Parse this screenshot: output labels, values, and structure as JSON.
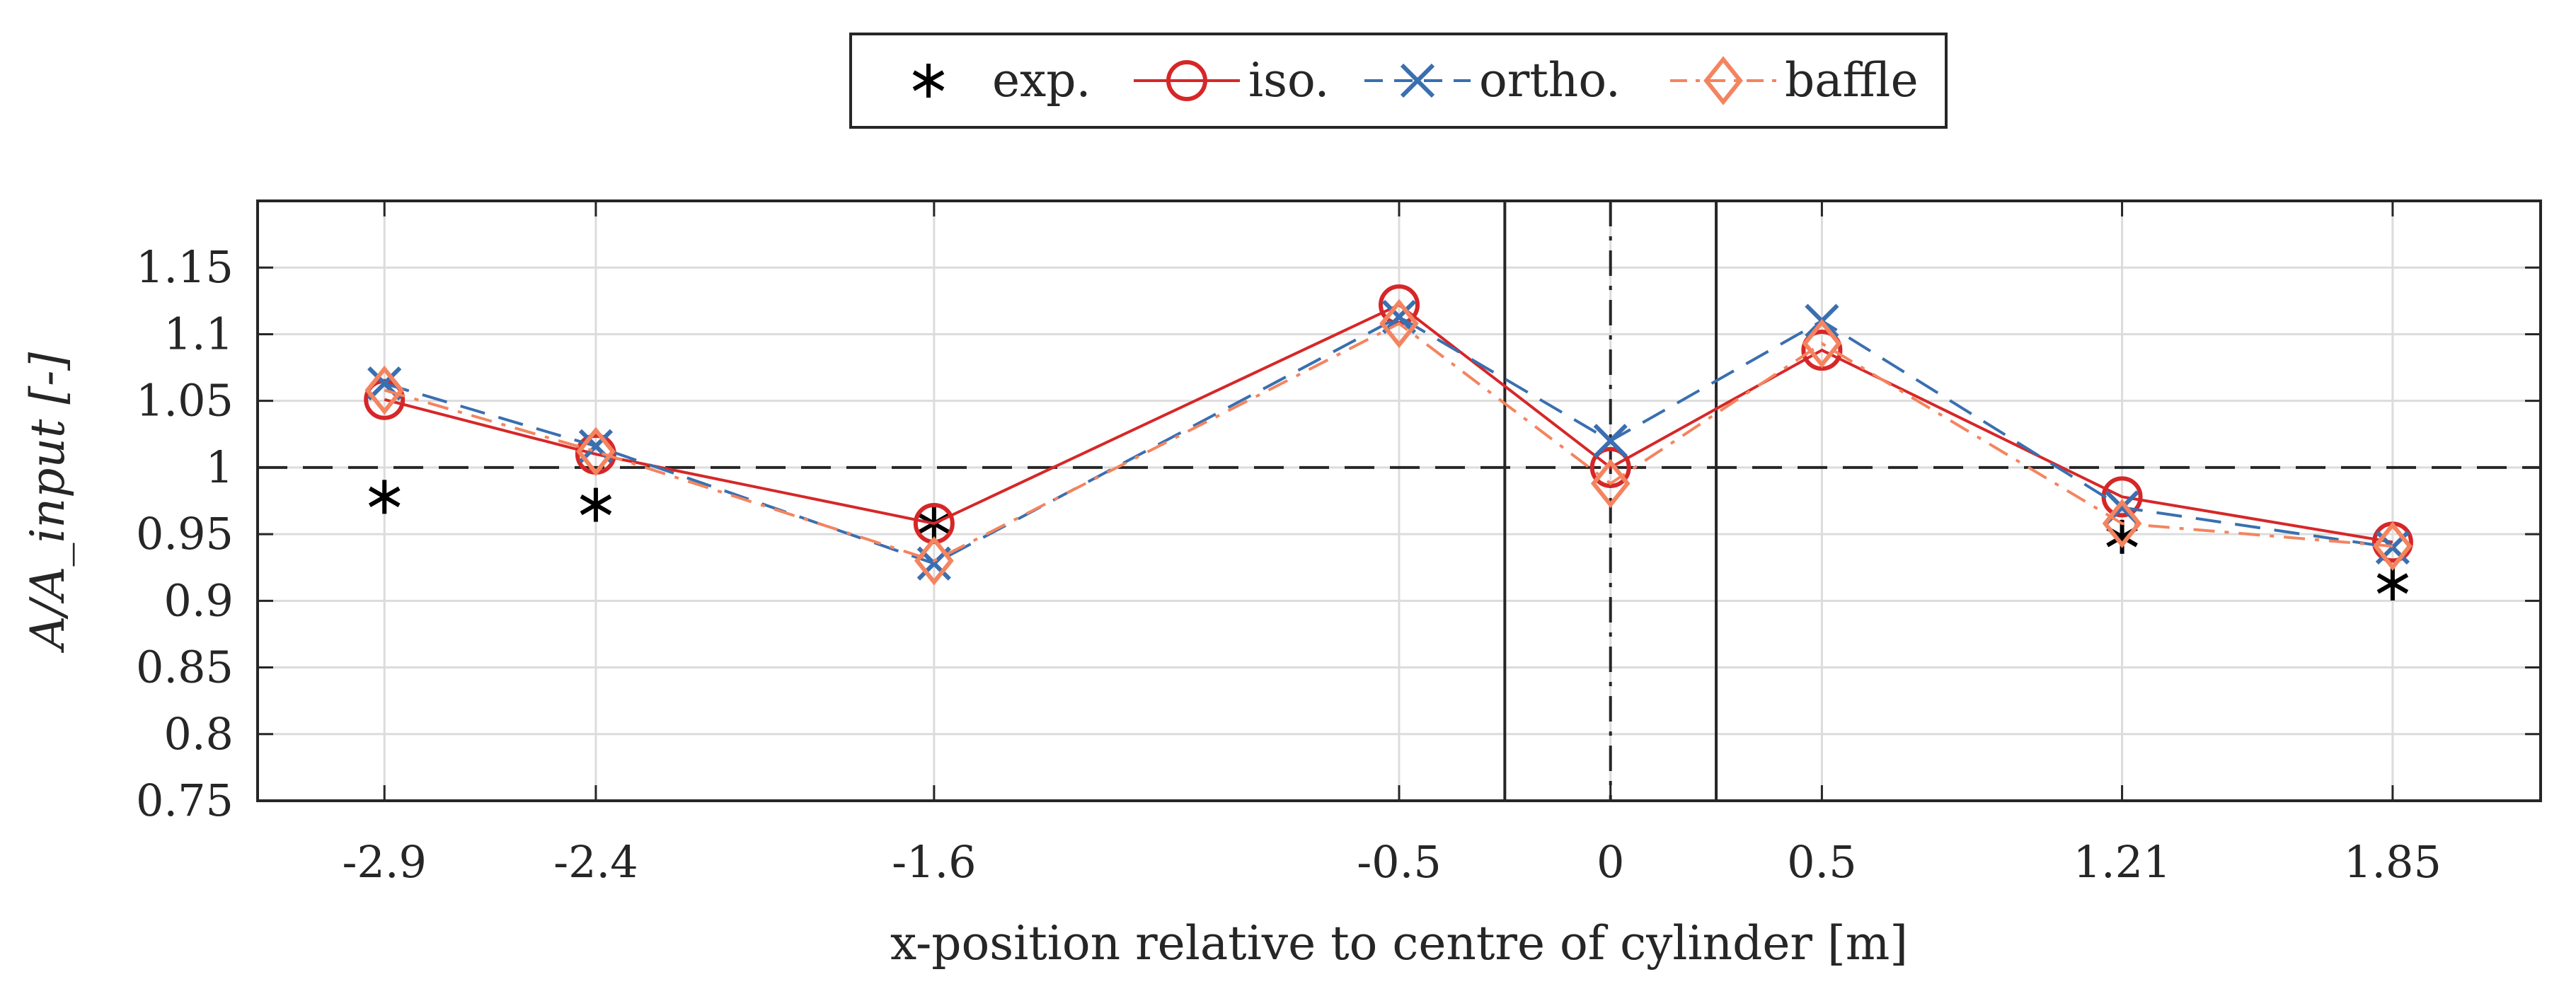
{
  "chart_data": {
    "type": "line",
    "xlabel": "x-position relative to centre of cylinder [m]",
    "ylabel": "A/A_input [-]",
    "ylim": [
      0.75,
      1.2
    ],
    "xlim": [
      -3.2,
      2.2
    ],
    "yticks": [
      0.75,
      0.8,
      0.85,
      0.9,
      0.95,
      1.0,
      1.05,
      1.1,
      1.15
    ],
    "ytick_labels": [
      "0.75",
      "0.8",
      "0.85",
      "0.9",
      "0.95",
      "1",
      "1.05",
      "1.1",
      "1.15"
    ],
    "x": [
      -2.9,
      -2.4,
      -1.6,
      -0.5,
      0,
      0.5,
      1.21,
      1.85
    ],
    "xtick_labels": [
      "-2.9",
      "-2.4",
      "-1.6",
      "-0.5",
      "0",
      "0.5",
      "1.21",
      "1.85"
    ],
    "reference_line_y": 1.0,
    "cylinder_edges_x": [
      -0.25,
      0.25
    ],
    "centre_line_x": 0,
    "grid": true,
    "legend_position": "top-center",
    "series": [
      {
        "name": "exp.",
        "marker": "asterisk",
        "line": "none",
        "color": "#000000",
        "values": [
          0.978,
          0.972,
          0.958,
          null,
          null,
          null,
          0.948,
          0.913
        ]
      },
      {
        "name": "iso.",
        "marker": "circle",
        "line": "solid",
        "color": "#d62728",
        "values": [
          1.051,
          1.01,
          0.958,
          1.122,
          1.0,
          1.088,
          0.978,
          0.944
        ]
      },
      {
        "name": "ortho.",
        "marker": "cross",
        "line": "dashed",
        "color": "#3a6fb0",
        "values": [
          1.063,
          1.016,
          0.928,
          1.113,
          1.02,
          1.11,
          0.97,
          0.94
        ]
      },
      {
        "name": "baffle",
        "marker": "diamond",
        "line": "dashdot",
        "color": "#f4845f",
        "values": [
          1.058,
          1.012,
          0.93,
          1.108,
          0.988,
          1.093,
          0.958,
          0.941
        ]
      }
    ]
  }
}
